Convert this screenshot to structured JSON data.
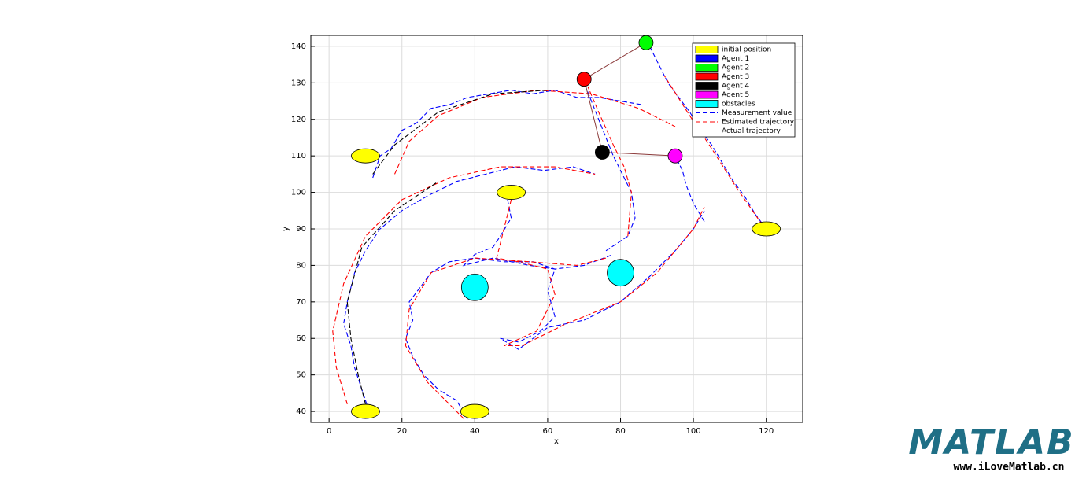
{
  "chart_data": {
    "type": "trajectory",
    "xlabel": "x",
    "ylabel": "y",
    "xlim": [
      -5,
      130
    ],
    "ylim": [
      37,
      143
    ],
    "xticks": [
      0,
      20,
      40,
      60,
      80,
      100,
      120
    ],
    "yticks": [
      40,
      50,
      60,
      70,
      80,
      90,
      100,
      110,
      120,
      130,
      140
    ],
    "grid": true,
    "legend_position": "northeast",
    "series": [
      {
        "name": "initial position",
        "color": "#ffff00",
        "marker": "ellipse",
        "x": [
          10,
          50,
          120,
          10,
          40
        ],
        "y": [
          110,
          100,
          90,
          40,
          40
        ]
      },
      {
        "name": "Agent 1",
        "color": "#0000ff",
        "marker": "circle",
        "x": [],
        "y": []
      },
      {
        "name": "Agent 2",
        "color": "#00ff00",
        "marker": "circle",
        "x": [
          87
        ],
        "y": [
          141
        ]
      },
      {
        "name": "Agent 3",
        "color": "#ff0000",
        "marker": "circle",
        "x": [
          70
        ],
        "y": [
          131
        ]
      },
      {
        "name": "Agent 4",
        "color": "#000000",
        "marker": "circle",
        "x": [
          75
        ],
        "y": [
          111
        ]
      },
      {
        "name": "Agent 5",
        "color": "#ff00ff",
        "marker": "circle",
        "x": [
          95
        ],
        "y": [
          110
        ]
      },
      {
        "name": "obstacles",
        "color": "#00ffff",
        "marker": "obstacle",
        "x": [
          40,
          80
        ],
        "y": [
          74,
          78
        ]
      },
      {
        "name": "Measurement value",
        "color": "#0000ff",
        "line": "dash",
        "x": [
          12,
          14,
          17,
          20,
          24,
          28,
          33,
          38,
          44,
          50,
          56,
          62,
          68,
          74,
          80,
          86,
          null,
          11,
          9,
          7,
          6,
          4,
          5,
          7,
          10,
          14,
          20,
          27,
          35,
          43,
          51,
          59,
          67,
          73,
          null,
          38,
          35,
          30,
          26,
          23,
          21,
          23,
          22,
          25,
          28,
          33,
          40,
          48,
          56,
          62,
          70,
          78,
          null,
          49,
          50,
          47,
          45,
          40,
          37,
          45,
          55,
          62,
          60,
          62,
          58,
          52,
          47,
          52,
          60,
          70,
          80,
          88,
          95,
          100,
          103,
          null,
          76,
          82,
          84,
          83,
          80,
          78,
          76,
          74,
          72,
          70,
          null,
          103,
          100,
          98,
          97,
          96,
          95,
          null,
          120,
          117,
          114,
          111,
          108,
          105,
          102,
          99,
          96,
          93,
          90,
          88
        ],
        "y": [
          104,
          110,
          112,
          117,
          119,
          123,
          124,
          126,
          127,
          128,
          127,
          128,
          126,
          126,
          125,
          124,
          null,
          40,
          46,
          52,
          58,
          64,
          70,
          78,
          84,
          90,
          95,
          99,
          103,
          105,
          107,
          106,
          107,
          105,
          null,
          38,
          43,
          46,
          50,
          55,
          60,
          65,
          70,
          74,
          78,
          81,
          82,
          81,
          81,
          79,
          80,
          83,
          null,
          98,
          93,
          88,
          85,
          83,
          80,
          82,
          80,
          79,
          73,
          66,
          62,
          59,
          60,
          57,
          63,
          65,
          70,
          77,
          84,
          90,
          95,
          null,
          84,
          88,
          93,
          100,
          106,
          110,
          115,
          120,
          125,
          130,
          null,
          92,
          97,
          102,
          106,
          108,
          110,
          null,
          90,
          94,
          99,
          103,
          108,
          113,
          117,
          122,
          126,
          130,
          136,
          140
        ]
      },
      {
        "name": "Estimated trajectory",
        "color": "#ff0000",
        "line": "dash",
        "x": [
          18,
          22,
          30,
          42,
          57,
          72,
          85,
          95,
          null,
          5,
          2,
          1,
          4,
          10,
          20,
          33,
          47,
          62,
          73,
          null,
          37,
          27,
          21,
          22,
          28,
          40,
          55,
          68,
          76,
          null,
          50,
          48,
          46,
          52,
          60,
          62,
          57,
          48,
          53,
          65,
          80,
          90,
          100,
          103,
          null,
          82,
          83,
          81,
          78,
          74,
          71,
          null,
          119,
          112,
          105,
          99,
          92
        ],
        "y": [
          105,
          114,
          121,
          126,
          128,
          127,
          123,
          118,
          null,
          42,
          52,
          62,
          75,
          88,
          98,
          104,
          107,
          107,
          105,
          null,
          38,
          48,
          58,
          68,
          78,
          82,
          81,
          80,
          82,
          null,
          98,
          90,
          82,
          81,
          79,
          72,
          62,
          58,
          58,
          64,
          70,
          78,
          90,
          96,
          null,
          88,
          100,
          107,
          113,
          122,
          129,
          null,
          91,
          101,
          112,
          121,
          132
        ]
      },
      {
        "name": "Actual trajectory",
        "color": "#000000",
        "line": "dash",
        "x": [
          12,
          18,
          30,
          45,
          60,
          null,
          10,
          8,
          6,
          5,
          9,
          18,
          30
        ],
        "y": [
          105,
          113,
          122,
          127,
          128,
          null,
          42,
          50,
          60,
          70,
          85,
          95,
          103
        ]
      }
    ]
  },
  "watermark": {
    "logo": "MATLAB",
    "url": "www.iLoveMatlab.cn"
  }
}
